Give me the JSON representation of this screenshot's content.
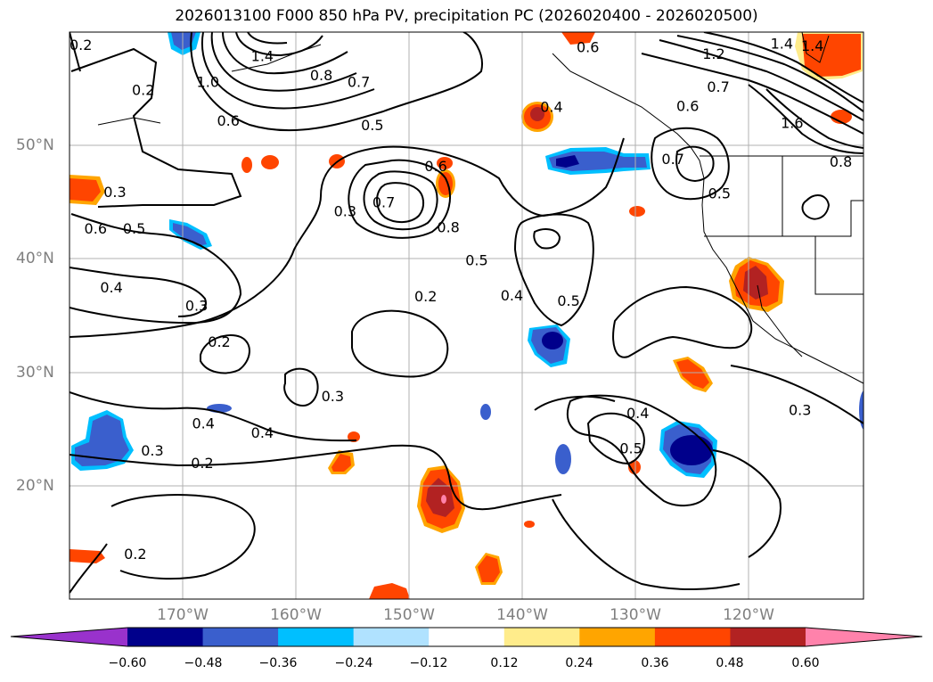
{
  "title": "2026013100 F000 850 hPa PV, precipitation PC (2026020400 - 2026020500)",
  "lon_labels": [
    "170°W",
    "160°W",
    "150°W",
    "140°W",
    "130°W",
    "120°W"
  ],
  "lat_labels": [
    "50°N",
    "40°N",
    "30°N",
    "20°N"
  ],
  "colorbar": {
    "ticks": [
      "−0.60",
      "−0.48",
      "−0.36",
      "−0.24",
      "−0.12",
      "0.12",
      "0.24",
      "0.36",
      "0.48",
      "0.60"
    ],
    "colors": [
      "#9932cc",
      "#00008b",
      "#3a5fcd",
      "#00bfff",
      "#b0e2ff",
      "#ffffff",
      "#ffec8b",
      "#ffa500",
      "#ff4500",
      "#b22222",
      "#ff82ab"
    ]
  },
  "contour_labels": [
    {
      "text": "0.2",
      "lon": -179.0,
      "lat": 58.8
    },
    {
      "text": "0.2",
      "lon": -173.5,
      "lat": 54.8
    },
    {
      "text": "1.4",
      "lon": -163.0,
      "lat": 57.8
    },
    {
      "text": "1.0",
      "lon": -167.8,
      "lat": 55.5
    },
    {
      "text": "0.8",
      "lon": -157.8,
      "lat": 56.1
    },
    {
      "text": "0.7",
      "lon": -154.5,
      "lat": 55.5
    },
    {
      "text": "0.6",
      "lon": -166.0,
      "lat": 52.1
    },
    {
      "text": "0.5",
      "lon": -153.3,
      "lat": 51.7
    },
    {
      "text": "0.6",
      "lon": -134.3,
      "lat": 58.6
    },
    {
      "text": "0.4",
      "lon": -137.5,
      "lat": 53.3
    },
    {
      "text": "1.2",
      "lon": -123.2,
      "lat": 58.0
    },
    {
      "text": "0.7",
      "lon": -122.8,
      "lat": 55.1
    },
    {
      "text": "0.6",
      "lon": -125.5,
      "lat": 53.4
    },
    {
      "text": "1.4",
      "lon": -117.2,
      "lat": 58.9
    },
    {
      "text": "1.6",
      "lon": -116.3,
      "lat": 51.9
    },
    {
      "text": "0.8",
      "lon": -112.0,
      "lat": 48.5
    },
    {
      "text": "0.7",
      "lon": -126.8,
      "lat": 48.7
    },
    {
      "text": "0.5",
      "lon": -122.7,
      "lat": 45.7
    },
    {
      "text": "0.6",
      "lon": -147.7,
      "lat": 48.1
    },
    {
      "text": "0.7",
      "lon": -152.3,
      "lat": 44.9
    },
    {
      "text": "0.8",
      "lon": -146.6,
      "lat": 42.7
    },
    {
      "text": "0.3",
      "lon": -155.7,
      "lat": 44.1
    },
    {
      "text": "0.3",
      "lon": -176.0,
      "lat": 45.8
    },
    {
      "text": "0.6",
      "lon": -177.7,
      "lat": 42.6
    },
    {
      "text": "0.5",
      "lon": -174.3,
      "lat": 42.6
    },
    {
      "text": "0.5",
      "lon": -144.1,
      "lat": 39.8
    },
    {
      "text": "0.2",
      "lon": -148.6,
      "lat": 36.6
    },
    {
      "text": "0.4",
      "lon": -141.0,
      "lat": 36.7
    },
    {
      "text": "0.5",
      "lon": -136.0,
      "lat": 36.2
    },
    {
      "text": "0.4",
      "lon": -176.3,
      "lat": 37.4
    },
    {
      "text": "0.3",
      "lon": -168.8,
      "lat": 35.8
    },
    {
      "text": "0.2",
      "lon": -166.8,
      "lat": 32.6
    },
    {
      "text": "0.3",
      "lon": -156.8,
      "lat": 27.8
    },
    {
      "text": "0.4",
      "lon": -168.2,
      "lat": 25.4
    },
    {
      "text": "0.4",
      "lon": -163.0,
      "lat": 24.6
    },
    {
      "text": "0.3",
      "lon": -172.7,
      "lat": 23.0
    },
    {
      "text": "0.2",
      "lon": -168.3,
      "lat": 21.9
    },
    {
      "text": "0.4",
      "lon": -129.9,
      "lat": 26.3
    },
    {
      "text": "0.5",
      "lon": -130.5,
      "lat": 23.2
    },
    {
      "text": "0.3",
      "lon": -115.6,
      "lat": 26.6
    },
    {
      "text": "0.2",
      "lon": -174.2,
      "lat": 13.9
    },
    {
      "text": "1.4",
      "lon": -114.5,
      "lat": 58.7
    }
  ]
}
